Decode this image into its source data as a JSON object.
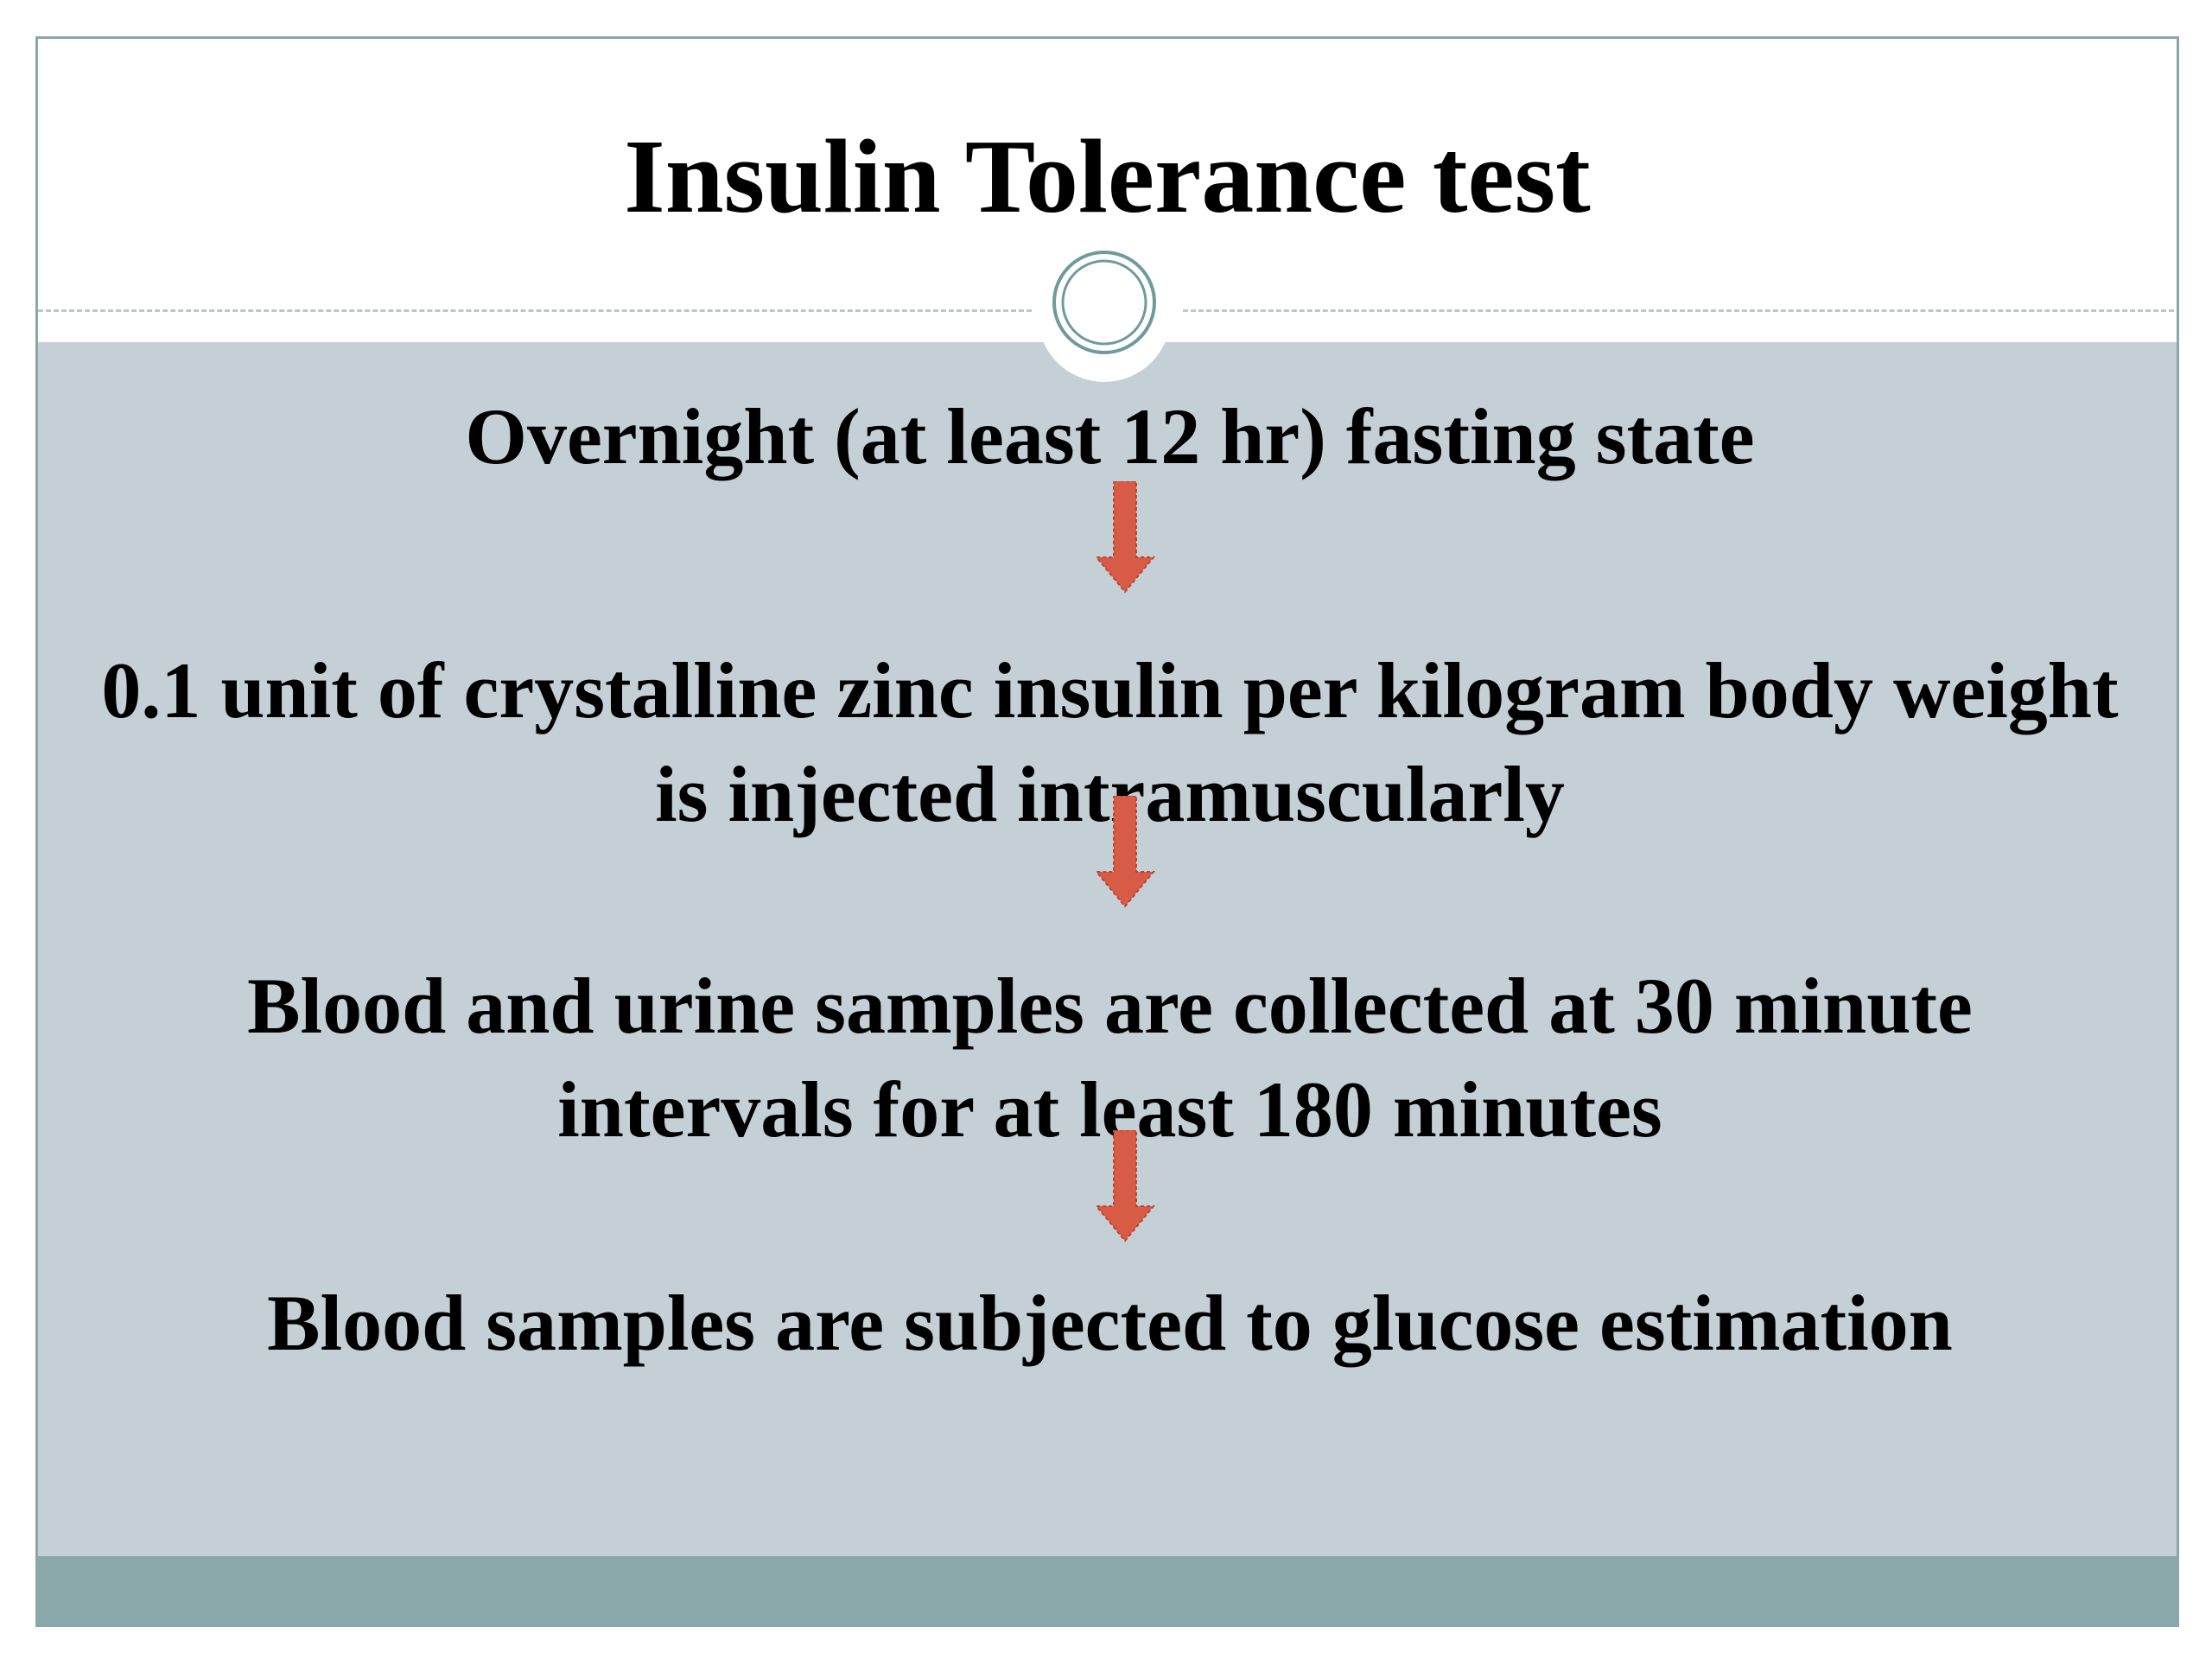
{
  "slide": {
    "title": "Insulin Tolerance test"
  },
  "flow": {
    "steps": [
      "Overnight (at least 12 hr) fasting state",
      "0.1 unit of crystalline zinc insulin per kilogram body weight is injected intramuscularly",
      "Blood and urine samples are collected at 30 minute intervals for at least 180 minutes",
      "Blood samples are subjected to glucose estimation"
    ],
    "arrow_icon": "arrow-down-icon"
  },
  "colors": {
    "content_background": "#c5d0d6",
    "footer_bar": "#8aa7aa",
    "arrow_fill": "#d85b45",
    "ornament_ring": "#6f9a9c"
  }
}
